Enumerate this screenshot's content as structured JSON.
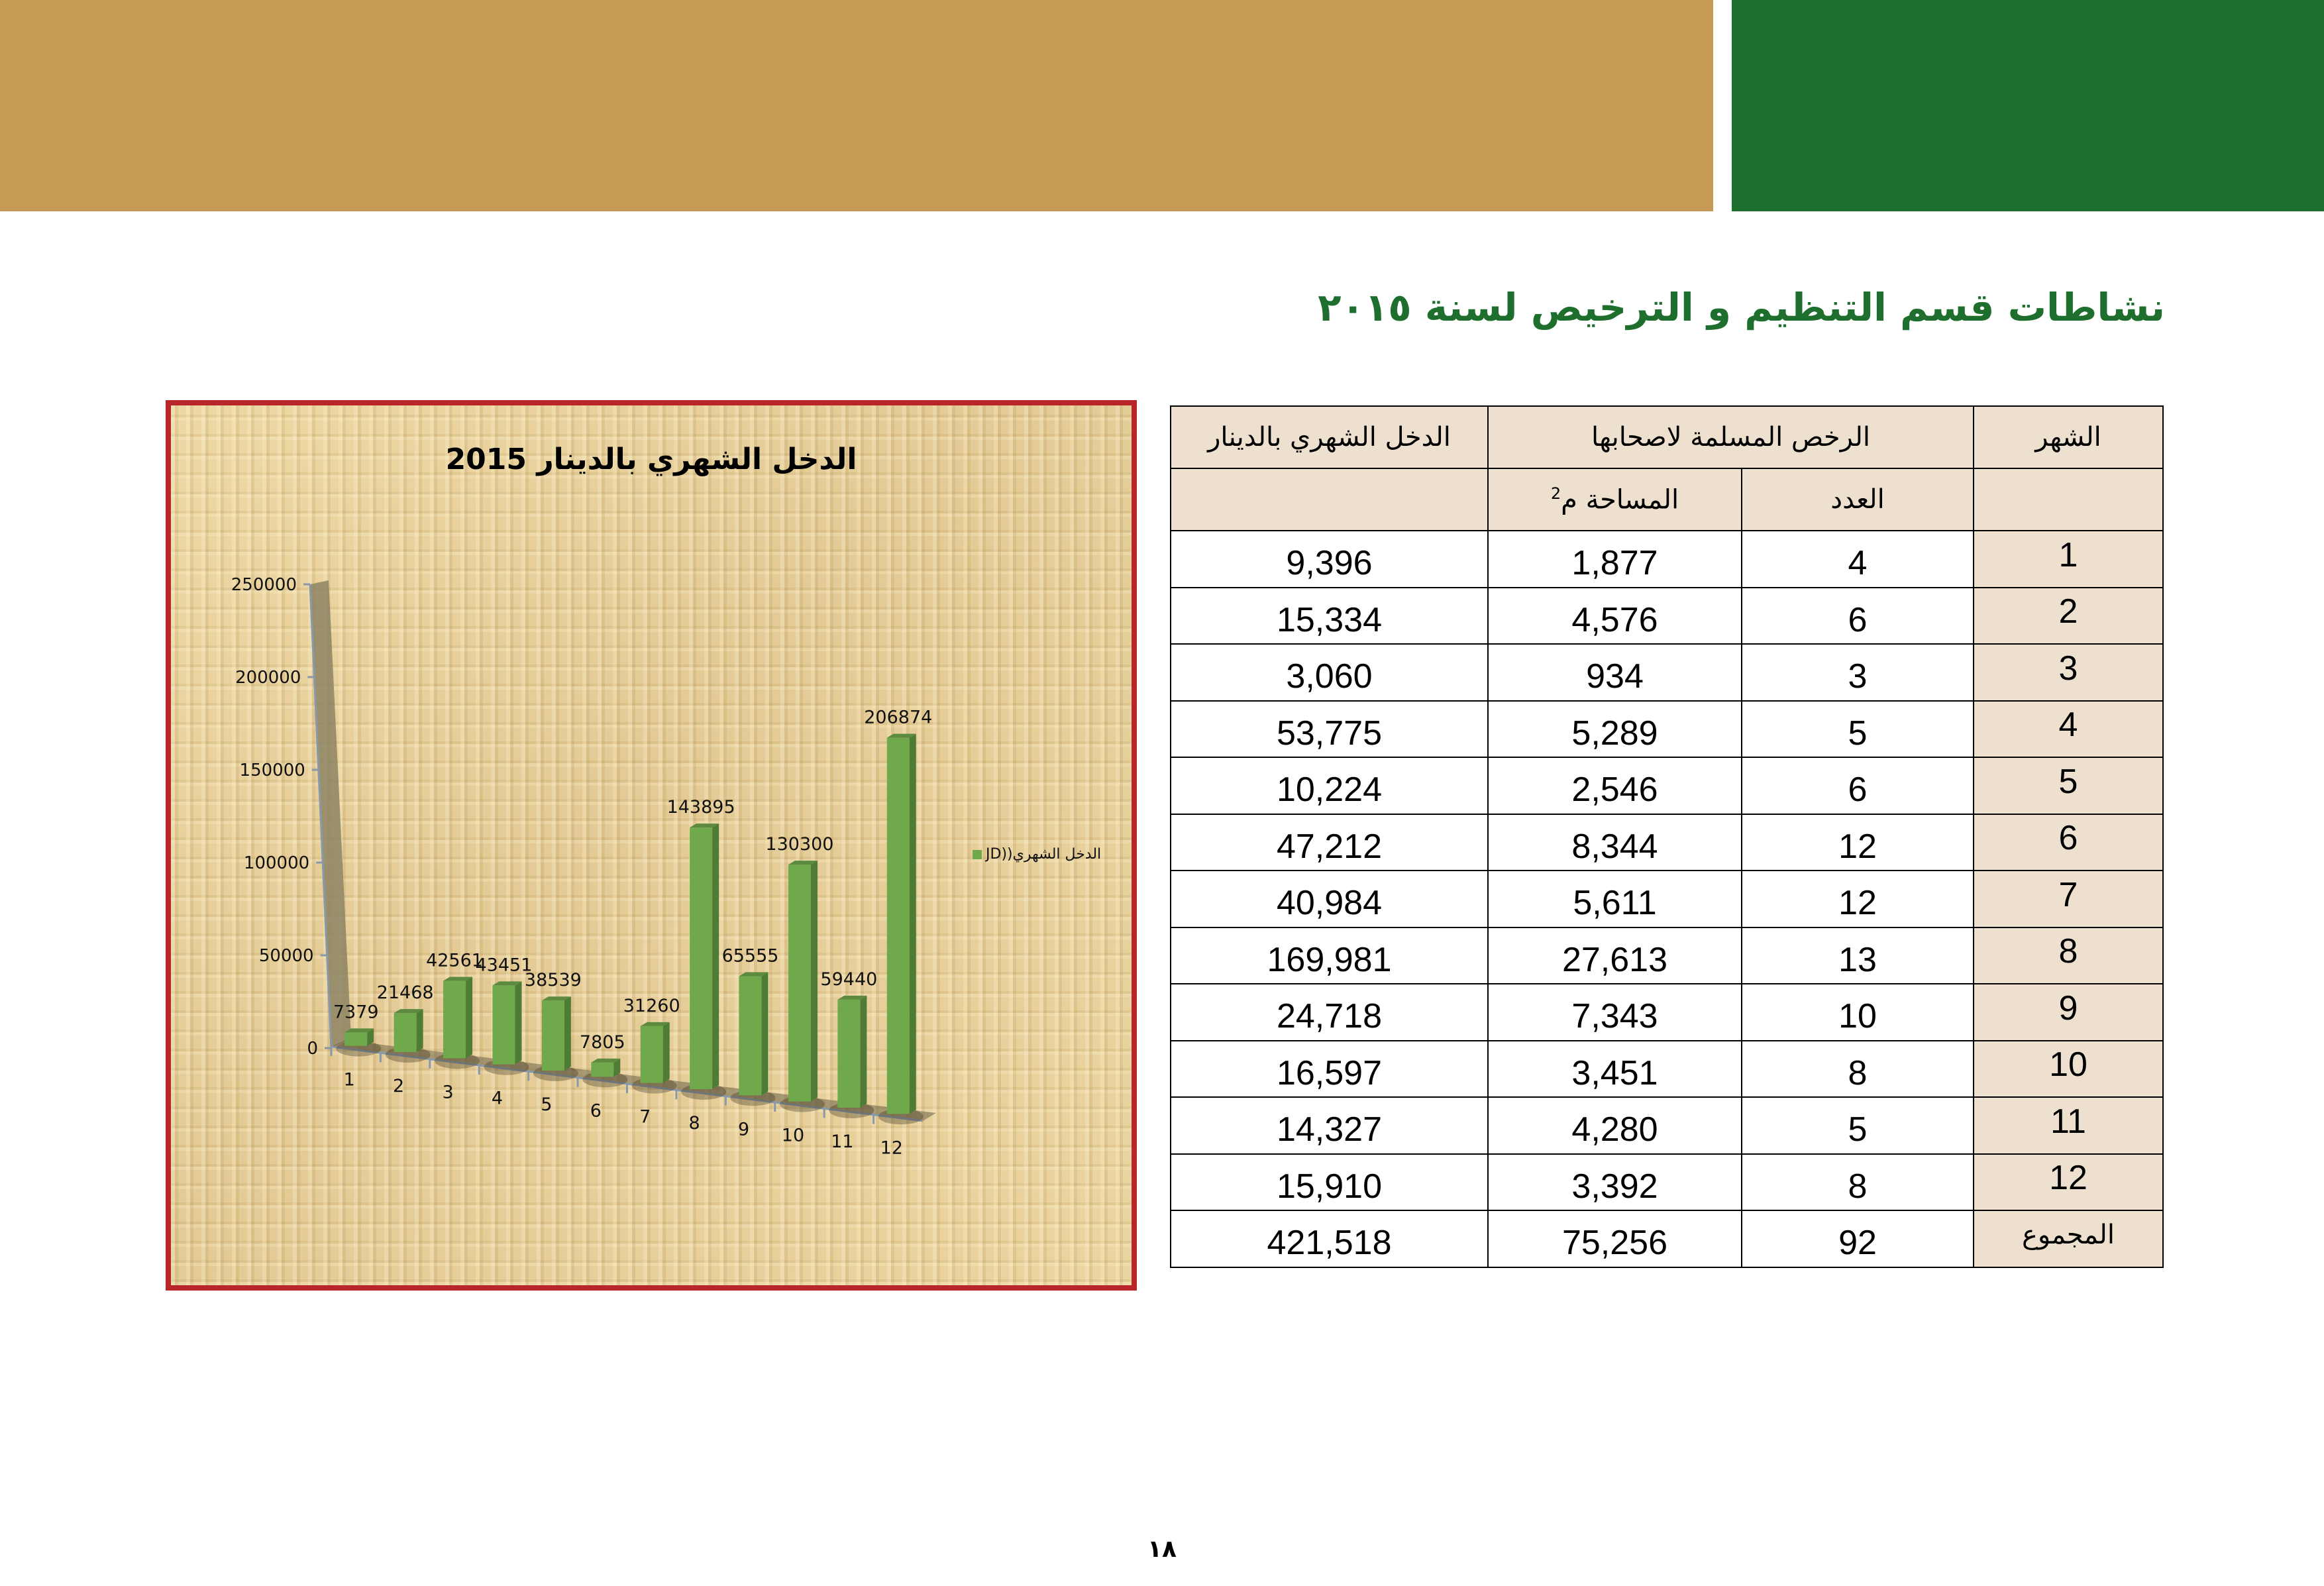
{
  "header": {
    "gold_color": "#c59a54",
    "green_color": "#1e6e2d"
  },
  "page_title": "نشاطات قسم التنظيم و الترخيص لسنة ٢٠١٥",
  "chart_data": {
    "type": "bar",
    "style": "3d-clustered-column",
    "title": "الدخل الشهري بالدينار 2015",
    "xlabel": "",
    "ylabel": "",
    "categories": [
      "1",
      "2",
      "3",
      "4",
      "5",
      "6",
      "7",
      "8",
      "9",
      "10",
      "11",
      "12"
    ],
    "series": [
      {
        "name": "الدخل الشهري((JD",
        "color": "#70a84c",
        "values": [
          7379,
          21468,
          42561,
          43451,
          38539,
          7805,
          31260,
          143895,
          65555,
          130300,
          59440,
          206874
        ]
      }
    ],
    "data_labels": [
      "7379",
      "21468",
      "42561",
      "43451",
      "38539",
      "7805",
      "31260",
      "143895",
      "65555",
      "130300",
      "59440",
      "206874"
    ],
    "ylim": [
      0,
      250000
    ],
    "yticks": [
      "0",
      "50000",
      "100000",
      "150000",
      "200000",
      "250000"
    ],
    "grid": false,
    "legend_position": "right"
  },
  "table": {
    "headers": {
      "month": "الشهر",
      "licenses_group": "الرخص المسلمة لاصحابها",
      "income": "الدخل الشهري بالدينار",
      "count": "العدد",
      "area": "المساحة م",
      "area_sup": "2"
    },
    "rows": [
      {
        "month": "1",
        "count": "4",
        "area": "1,877",
        "income": "9,396"
      },
      {
        "month": "2",
        "count": "6",
        "area": "4,576",
        "income": "15,334"
      },
      {
        "month": "3",
        "count": "3",
        "area": "934",
        "income": "3,060"
      },
      {
        "month": "4",
        "count": "5",
        "area": "5,289",
        "income": "53,775"
      },
      {
        "month": "5",
        "count": "6",
        "area": "2,546",
        "income": "10,224"
      },
      {
        "month": "6",
        "count": "12",
        "area": "8,344",
        "income": "47,212"
      },
      {
        "month": "7",
        "count": "12",
        "area": "5,611",
        "income": "40,984"
      },
      {
        "month": "8",
        "count": "13",
        "area": "27,613",
        "income": "169,981"
      },
      {
        "month": "9",
        "count": "10",
        "area": "7,343",
        "income": "24,718"
      },
      {
        "month": "10",
        "count": "8",
        "area": "3,451",
        "income": "16,597"
      },
      {
        "month": "11",
        "count": "5",
        "area": "4,280",
        "income": "14,327"
      },
      {
        "month": "12",
        "count": "8",
        "area": "3,392",
        "income": "15,910"
      }
    ],
    "total": {
      "label": "المجموع",
      "count": "92",
      "area": "75,256",
      "income": "421,518"
    }
  },
  "page_number": "١٨"
}
